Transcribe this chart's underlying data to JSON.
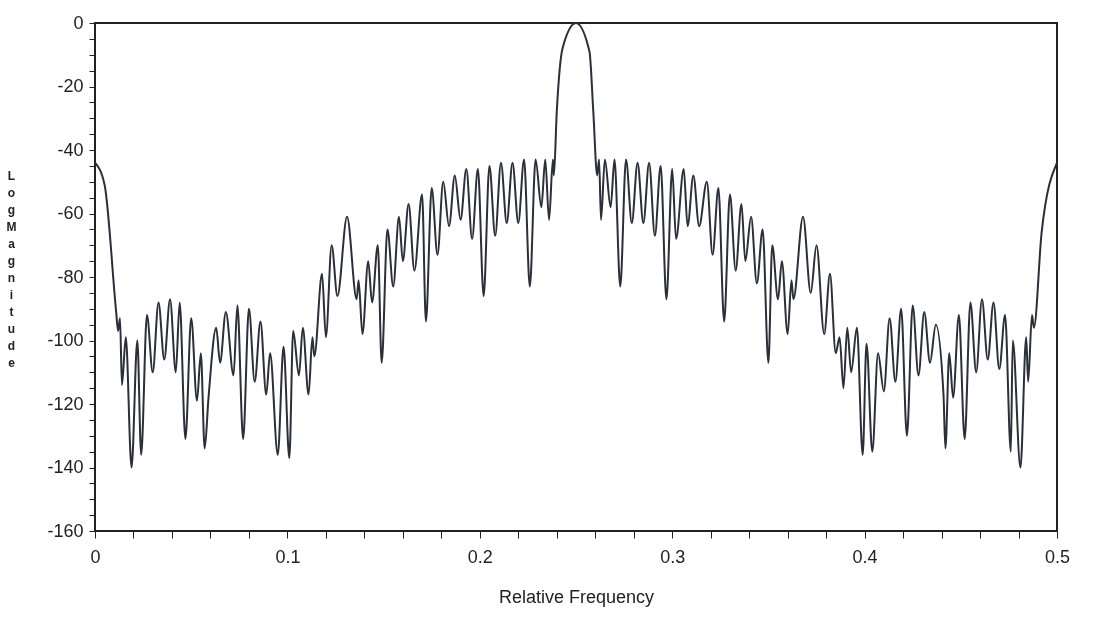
{
  "chart_data": {
    "type": "line",
    "xlabel": "Relative Frequency",
    "ylabel": "Log Magnitude",
    "xlim": [
      0,
      0.5
    ],
    "ylim": [
      -160,
      0
    ],
    "xticks": [
      0,
      {
        "value": 0.02,
        "label": null
      },
      {
        "value": 0.04,
        "label": null
      },
      {
        "value": 0.06,
        "label": null
      },
      {
        "value": 0.08,
        "label": null
      },
      0.1,
      {
        "value": 0.12,
        "label": null
      },
      {
        "value": 0.14,
        "label": null
      },
      {
        "value": 0.16,
        "label": null
      },
      {
        "value": 0.18,
        "label": null
      },
      0.2,
      {
        "value": 0.22,
        "label": null
      },
      {
        "value": 0.24,
        "label": null
      },
      {
        "value": 0.26,
        "label": null
      },
      {
        "value": 0.28,
        "label": null
      },
      0.3,
      {
        "value": 0.32,
        "label": null
      },
      {
        "value": 0.34,
        "label": null
      },
      {
        "value": 0.36,
        "label": null
      },
      {
        "value": 0.38,
        "label": null
      },
      0.4,
      {
        "value": 0.42,
        "label": null
      },
      {
        "value": 0.44,
        "label": null
      },
      {
        "value": 0.46,
        "label": null
      },
      {
        "value": 0.48,
        "label": null
      },
      0.5
    ],
    "yticks": [
      -160,
      {
        "value": -155,
        "label": null
      },
      {
        "value": -150,
        "label": null
      },
      {
        "value": -145,
        "label": null
      },
      -140,
      {
        "value": -135,
        "label": null
      },
      {
        "value": -130,
        "label": null
      },
      {
        "value": -125,
        "label": null
      },
      -120,
      {
        "value": -115,
        "label": null
      },
      {
        "value": -110,
        "label": null
      },
      {
        "value": -105,
        "label": null
      },
      -100,
      {
        "value": -95,
        "label": null
      },
      {
        "value": -90,
        "label": null
      },
      {
        "value": -85,
        "label": null
      },
      -80,
      {
        "value": -75,
        "label": null
      },
      {
        "value": -70,
        "label": null
      },
      {
        "value": -65,
        "label": null
      },
      -60,
      {
        "value": -55,
        "label": null
      },
      {
        "value": -50,
        "label": null
      },
      {
        "value": -45,
        "label": null
      },
      -40,
      {
        "value": -35,
        "label": null
      },
      {
        "value": -30,
        "label": null
      },
      {
        "value": -25,
        "label": null
      },
      -20,
      {
        "value": -15,
        "label": null
      },
      {
        "value": -10,
        "label": null
      },
      {
        "value": -5,
        "label": null
      },
      0
    ],
    "grid": false,
    "marker": "none",
    "line_style": "solid",
    "series": [
      {
        "color": "#2b2f3a",
        "x": [
          0,
          0.005,
          0.011,
          0.012,
          0.013,
          0.014,
          0.016,
          0.019,
          0.022,
          0.024,
          0.027,
          0.03,
          0.033,
          0.036,
          0.039,
          0.042,
          0.044,
          0.047,
          0.05,
          0.053,
          0.055,
          0.057,
          0.059,
          0.063,
          0.065,
          0.068,
          0.072,
          0.074,
          0.077,
          0.08,
          0.083,
          0.086,
          0.089,
          0.091,
          0.095,
          0.098,
          0.101,
          0.103,
          0.106,
          0.108,
          0.111,
          0.113,
          0.114,
          0.118,
          0.12,
          0.123,
          0.126,
          0.131,
          0.136,
          0.137,
          0.139,
          0.142,
          0.144,
          0.147,
          0.149,
          0.152,
          0.155,
          0.158,
          0.16,
          0.163,
          0.166,
          0.17,
          0.172,
          0.175,
          0.178,
          0.181,
          0.184,
          0.187,
          0.19,
          0.193,
          0.196,
          0.199,
          0.202,
          0.205,
          0.208,
          0.211,
          0.214,
          0.217,
          0.22,
          0.223,
          0.226,
          0.229,
          0.232,
          0.234,
          0.236,
          0.238,
          0.2385,
          0.24,
          0.243,
          0.25,
          0.257,
          0.259,
          0.261,
          0.262,
          0.263,
          0.265,
          0.268,
          0.27,
          0.273,
          0.276,
          0.279,
          0.282,
          0.285,
          0.288,
          0.291,
          0.294,
          0.297,
          0.3,
          0.302,
          0.306,
          0.308,
          0.311,
          0.314,
          0.318,
          0.321,
          0.324,
          0.327,
          0.33,
          0.333,
          0.336,
          0.338,
          0.341,
          0.344,
          0.347,
          0.35,
          0.352,
          0.355,
          0.357,
          0.36,
          0.362,
          0.363,
          0.368,
          0.372,
          0.375,
          0.379,
          0.382,
          0.385,
          0.387,
          0.389,
          0.391,
          0.393,
          0.396,
          0.399,
          0.401,
          0.404,
          0.407,
          0.41,
          0.413,
          0.416,
          0.419,
          0.422,
          0.425,
          0.428,
          0.431,
          0.434,
          0.437,
          0.441,
          0.442,
          0.444,
          0.446,
          0.449,
          0.452,
          0.455,
          0.458,
          0.461,
          0.464,
          0.467,
          0.47,
          0.473,
          0.476,
          0.477,
          0.481,
          0.484,
          0.485,
          0.487,
          0.488,
          0.492,
          0.5
        ],
        "values": [
          -44,
          -51,
          -91,
          -97,
          -93,
          -114,
          -99,
          -140,
          -100,
          -136,
          -92,
          -110,
          -88,
          -106,
          -87,
          -110,
          -88,
          -131,
          -93,
          -119,
          -104,
          -134,
          -118,
          -96,
          -107,
          -91,
          -111,
          -89,
          -131,
          -90,
          -113,
          -94,
          -117,
          -104,
          -136,
          -102,
          -137,
          -97,
          -111,
          -96,
          -117,
          -99,
          -105,
          -79,
          -99,
          -70,
          -86,
          -61,
          -87,
          -81,
          -98,
          -75,
          -88,
          -70,
          -107,
          -65,
          -83,
          -61,
          -75,
          -57,
          -78,
          -54,
          -94,
          -52,
          -73,
          -50,
          -64,
          -48,
          -62,
          -46,
          -68,
          -46,
          -86,
          -45,
          -67,
          -44,
          -63,
          -44,
          -63,
          -43,
          -83,
          -43,
          -58,
          -43,
          -62,
          -43,
          -48,
          -28,
          -8,
          0,
          -9,
          -28,
          -48,
          -43,
          -62,
          -43,
          -58,
          -43,
          -83,
          -43,
          -63,
          -44,
          -63,
          -44,
          -67,
          -45,
          -87,
          -46,
          -68,
          -46,
          -64,
          -48,
          -64,
          -50,
          -73,
          -52,
          -94,
          -54,
          -78,
          -57,
          -75,
          -61,
          -82,
          -65,
          -107,
          -70,
          -87,
          -75,
          -98,
          -81,
          -87,
          -61,
          -85,
          -70,
          -98,
          -79,
          -104,
          -99,
          -115,
          -96,
          -110,
          -96,
          -136,
          -101,
          -135,
          -104,
          -116,
          -93,
          -113,
          -90,
          -130,
          -89,
          -111,
          -91,
          -107,
          -95,
          -117,
          -134,
          -104,
          -118,
          -92,
          -131,
          -88,
          -110,
          -87,
          -106,
          -88,
          -109,
          -92,
          -135,
          -100,
          -140,
          -99,
          -113,
          -92,
          -96,
          -66,
          -44
        ]
      }
    ]
  }
}
